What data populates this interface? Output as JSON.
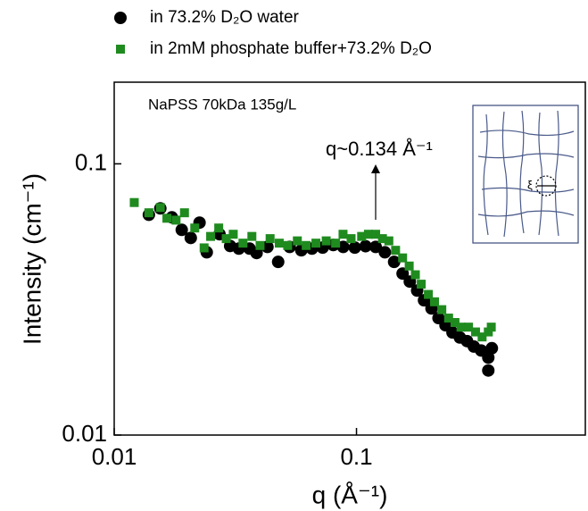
{
  "chart_data": {
    "type": "scatter",
    "log_x": true,
    "log_y": true,
    "xlabel": "q (Å⁻¹)",
    "ylabel": "Intensity (cm⁻¹)",
    "annotations": [
      "NaPSS 70kDa 135g/L",
      "q~0.134 Å⁻¹",
      "ξ"
    ],
    "xlim": [
      0.01,
      0.88
    ],
    "ylim": [
      0.01,
      0.2
    ],
    "xticks": [
      0.01,
      0.1
    ],
    "yticks": [
      0.01,
      0.1
    ],
    "series": [
      {
        "name": "in 73.2% D₂O water",
        "color": "#000000",
        "marker": "circle",
        "x": [
          0.0139,
          0.0155,
          0.0173,
          0.019,
          0.0207,
          0.0225,
          0.0241,
          0.0272,
          0.0301,
          0.0327,
          0.0362,
          0.0387,
          0.0429,
          0.0475,
          0.053,
          0.0592,
          0.0655,
          0.0725,
          0.0802,
          0.0881,
          0.0984,
          0.109,
          0.12,
          0.131,
          0.143,
          0.155,
          0.166,
          0.178,
          0.19,
          0.204,
          0.218,
          0.233,
          0.249,
          0.267,
          0.286,
          0.305,
          0.327,
          0.35,
          0.35,
          0.362
        ],
        "y": [
          0.0649,
          0.0685,
          0.0635,
          0.0571,
          0.0533,
          0.0607,
          0.0472,
          0.055,
          0.0498,
          0.0487,
          0.0487,
          0.0469,
          0.0494,
          0.0435,
          0.0494,
          0.048,
          0.0487,
          0.0491,
          0.0502,
          0.0494,
          0.0491,
          0.0497,
          0.0494,
          0.0472,
          0.0435,
          0.0394,
          0.0368,
          0.0341,
          0.0314,
          0.0293,
          0.027,
          0.0254,
          0.0239,
          0.0229,
          0.0222,
          0.0212,
          0.0205,
          0.0193,
          0.0173,
          0.0209
        ]
      },
      {
        "name": "in 2mM phosphate buffer+73.2% D₂O",
        "color": "#1f8b1f",
        "marker": "square",
        "x": [
          0.0121,
          0.0139,
          0.0155,
          0.0165,
          0.018,
          0.0195,
          0.0215,
          0.0235,
          0.025,
          0.027,
          0.029,
          0.031,
          0.034,
          0.037,
          0.04,
          0.044,
          0.048,
          0.052,
          0.057,
          0.062,
          0.068,
          0.075,
          0.082,
          0.088,
          0.095,
          0.105,
          0.112,
          0.12,
          0.128,
          0.136,
          0.145,
          0.155,
          0.165,
          0.175,
          0.185,
          0.198,
          0.21,
          0.225,
          0.24,
          0.255,
          0.27,
          0.29,
          0.31,
          0.33,
          0.35,
          0.36
        ],
        "y": [
          0.072,
          0.066,
          0.069,
          0.063,
          0.062,
          0.066,
          0.058,
          0.049,
          0.054,
          0.058,
          0.053,
          0.055,
          0.051,
          0.054,
          0.05,
          0.053,
          0.051,
          0.05,
          0.052,
          0.05,
          0.051,
          0.052,
          0.051,
          0.055,
          0.053,
          0.054,
          0.055,
          0.055,
          0.053,
          0.052,
          0.048,
          0.045,
          0.042,
          0.039,
          0.036,
          0.033,
          0.031,
          0.029,
          0.027,
          0.026,
          0.025,
          0.025,
          0.024,
          0.023,
          0.024,
          0.025
        ]
      }
    ]
  }
}
